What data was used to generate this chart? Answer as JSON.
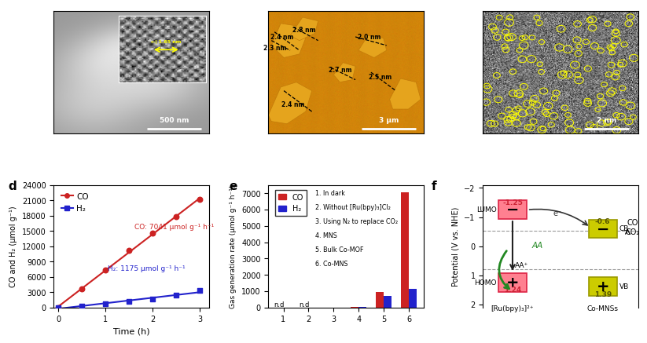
{
  "panel_d": {
    "time": [
      0.0,
      0.5,
      1.0,
      1.5,
      2.0,
      2.5,
      3.0
    ],
    "CO": [
      0,
      3600,
      7400,
      11200,
      14500,
      17800,
      21200
    ],
    "H2": [
      0,
      300,
      700,
      1200,
      1700,
      2400,
      3300
    ],
    "CO_rate": "CO: 7041 μmol g⁻¹ h⁻¹",
    "H2_rate": "H₂: 1175 μmol g⁻¹ h⁻¹",
    "xlabel": "Time (h)",
    "ylabel": "CO and H₂ (μmol g⁻¹)",
    "ylim": [
      0,
      24000
    ],
    "yticks": [
      0,
      3000,
      6000,
      9000,
      12000,
      15000,
      18000,
      21000,
      24000
    ],
    "CO_color": "#cc2222",
    "H2_color": "#2222cc"
  },
  "panel_e": {
    "categories": [
      "1",
      "2",
      "3",
      "4",
      "5",
      "6"
    ],
    "CO_values": [
      0,
      0,
      0,
      50,
      950,
      7050
    ],
    "H2_values": [
      0,
      0,
      0,
      20,
      720,
      1150
    ],
    "CO_color": "#cc2222",
    "H2_color": "#2222cc",
    "ylabel": "Gas generation rate (μmol g⁻¹ h⁻¹)",
    "ylim": [
      0,
      7500
    ],
    "yticks": [
      0,
      1000,
      2000,
      3000,
      4000,
      5000,
      6000,
      7000
    ],
    "text_labels": [
      "1. In dark",
      "2. Without [Ru(bpy)₃]Cl₂",
      "3. Using N₂ to replace CO₂",
      "4. MNS",
      "5. Bulk Co-MOF",
      "6. Co-MNS"
    ]
  },
  "panel_f": {
    "ylabel": "Potential (V vs. NHE)",
    "ylim": [
      2.1,
      -2.1
    ],
    "yticks": [
      2,
      1,
      0,
      -1,
      -2
    ],
    "yticklabels": [
      "2",
      "1",
      "0",
      "-1",
      "-2"
    ],
    "LUMO_val": -1.25,
    "HOMO_val": 1.24,
    "CB_val": -0.6,
    "VB_val": 1.39,
    "CO2_CO_line": -0.53,
    "AA_AAplus_line": 0.8,
    "LUMO_color": "#ff7b8a",
    "HOMO_color": "#ff7b8a",
    "CB_color": "#cccc00",
    "VB_color": "#cccc00",
    "label_Ru": "[Ru(bpy)₃]²⁺",
    "label_Co": "Co-MNSs"
  },
  "panel_label_fontsize": 11
}
